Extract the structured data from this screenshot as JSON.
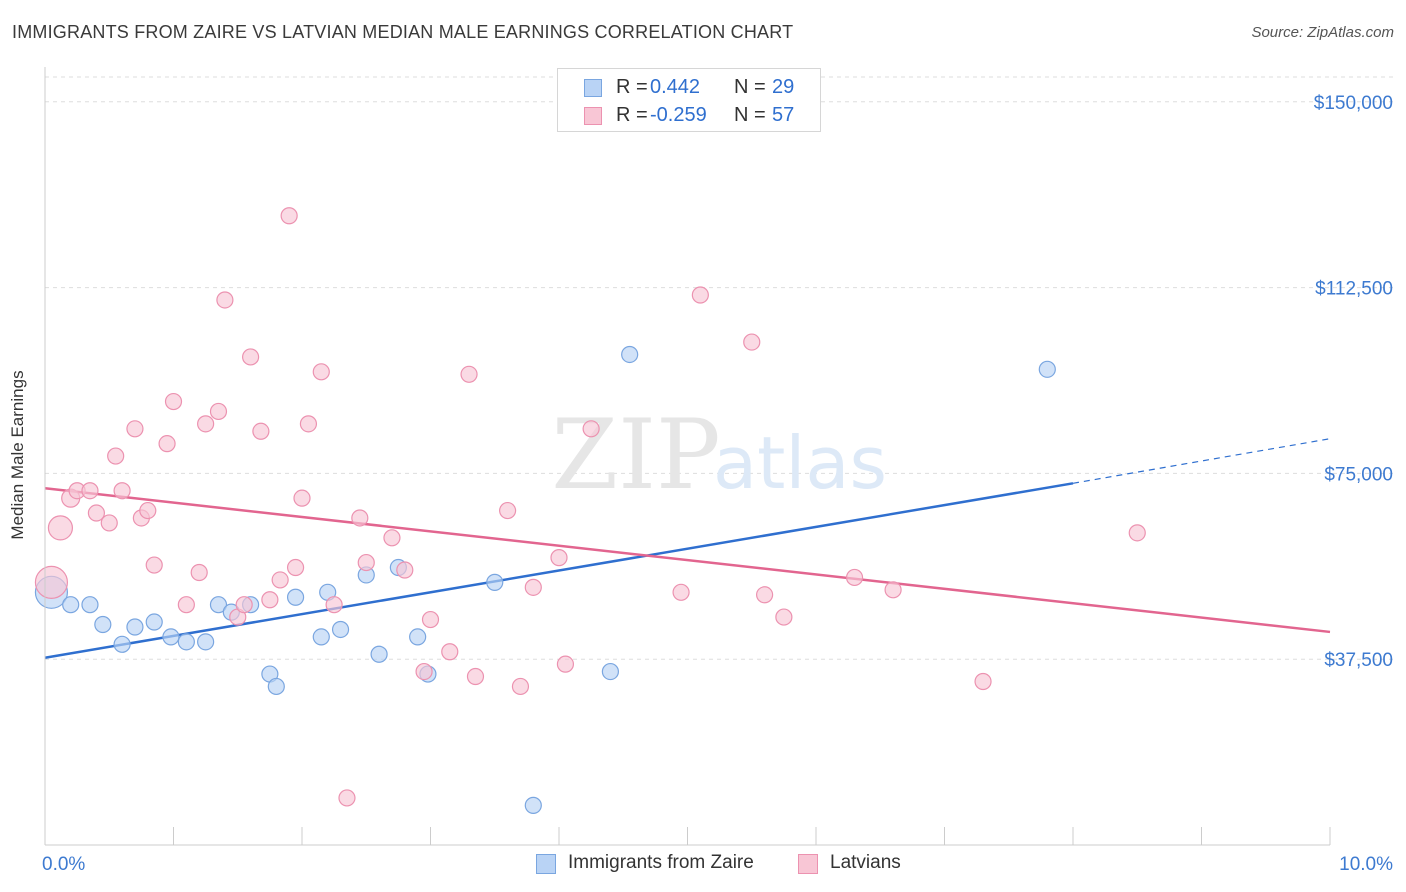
{
  "title": "IMMIGRANTS FROM ZAIRE VS LATVIAN MEDIAN MALE EARNINGS CORRELATION CHART",
  "source": "Source: ZipAtlas.com",
  "watermark": {
    "zip": "ZIP",
    "atlas": "atlas"
  },
  "colors": {
    "blue_fill": "#b9d3f5",
    "blue_stroke": "#7aa6e0",
    "blue_line": "#2f6fcf",
    "pink_fill": "#f8c6d5",
    "pink_stroke": "#ec92b0",
    "pink_line": "#e2658f",
    "axis_text": "#3d7ad0",
    "grid": "#dddddd"
  },
  "stats": [
    {
      "r_label": "R =",
      "r_value": "0.442",
      "n_label": "N =",
      "n_value": "29",
      "color": "blue"
    },
    {
      "r_label": "R =",
      "r_value": "-0.259",
      "n_label": "N =",
      "n_value": "57",
      "color": "pink"
    }
  ],
  "legend": [
    {
      "label": "Immigrants from Zaire",
      "color": "blue"
    },
    {
      "label": "Latvians",
      "color": "pink"
    }
  ],
  "chart_data": {
    "type": "scatter",
    "title": "IMMIGRANTS FROM ZAIRE VS LATVIAN MEDIAN MALE EARNINGS CORRELATION CHART",
    "xlabel": "",
    "ylabel": "Median Male Earnings",
    "xlim": [
      0,
      10
    ],
    "ylim": [
      0,
      155000
    ],
    "x_tick_labels": [
      "0.0%",
      "10.0%"
    ],
    "y_ticks": [
      37500,
      75000,
      112500,
      150000
    ],
    "y_tick_labels": [
      "$37,500",
      "$75,000",
      "$112,500",
      "$150,000"
    ],
    "grid": true,
    "legend_position": "bottom-center",
    "series": [
      {
        "name": "Immigrants from Zaire",
        "color": "blue",
        "points": [
          [
            0.05,
            51000
          ],
          [
            0.2,
            48500
          ],
          [
            0.35,
            48500
          ],
          [
            0.45,
            44500
          ],
          [
            0.6,
            40500
          ],
          [
            0.7,
            44000
          ],
          [
            0.85,
            45000
          ],
          [
            0.98,
            42000
          ],
          [
            1.1,
            41000
          ],
          [
            1.25,
            41000
          ],
          [
            1.35,
            48500
          ],
          [
            1.45,
            47000
          ],
          [
            1.6,
            48500
          ],
          [
            1.75,
            34500
          ],
          [
            1.8,
            32000
          ],
          [
            1.95,
            50000
          ],
          [
            2.15,
            42000
          ],
          [
            2.2,
            51000
          ],
          [
            2.3,
            43500
          ],
          [
            2.5,
            54500
          ],
          [
            2.6,
            38500
          ],
          [
            2.75,
            56000
          ],
          [
            2.9,
            42000
          ],
          [
            2.98,
            34500
          ],
          [
            3.5,
            53000
          ],
          [
            3.8,
            8000
          ],
          [
            4.4,
            35000
          ],
          [
            4.55,
            99000
          ],
          [
            7.8,
            96000
          ]
        ],
        "sizes": [
          30,
          14,
          14,
          14,
          14,
          14,
          14,
          14,
          14,
          14,
          14,
          14,
          14,
          14,
          14,
          14,
          14,
          14,
          14,
          14,
          14,
          14,
          14,
          14,
          14,
          14,
          14,
          14,
          14
        ],
        "trend": {
          "x": [
            0,
            8.0
          ],
          "y": [
            37800,
            73000
          ],
          "extended_x": [
            8.0,
            10.0
          ],
          "extended_y": [
            73000,
            82000
          ]
        }
      },
      {
        "name": "Latvians",
        "color": "pink",
        "points": [
          [
            0.05,
            53000
          ],
          [
            0.12,
            64000
          ],
          [
            0.2,
            70000
          ],
          [
            0.25,
            71500
          ],
          [
            0.35,
            71500
          ],
          [
            0.4,
            67000
          ],
          [
            0.5,
            65000
          ],
          [
            0.55,
            78500
          ],
          [
            0.6,
            71500
          ],
          [
            0.7,
            84000
          ],
          [
            0.75,
            66000
          ],
          [
            0.8,
            67500
          ],
          [
            0.85,
            56500
          ],
          [
            0.95,
            81000
          ],
          [
            1.0,
            89500
          ],
          [
            1.1,
            48500
          ],
          [
            1.2,
            55000
          ],
          [
            1.25,
            85000
          ],
          [
            1.35,
            87500
          ],
          [
            1.4,
            110000
          ],
          [
            1.5,
            46000
          ],
          [
            1.55,
            48500
          ],
          [
            1.6,
            98500
          ],
          [
            1.68,
            83500
          ],
          [
            1.75,
            49500
          ],
          [
            1.83,
            53500
          ],
          [
            1.9,
            127000
          ],
          [
            1.95,
            56000
          ],
          [
            2.0,
            70000
          ],
          [
            2.05,
            85000
          ],
          [
            2.15,
            95500
          ],
          [
            2.25,
            48500
          ],
          [
            2.35,
            9500
          ],
          [
            2.45,
            66000
          ],
          [
            2.5,
            57000
          ],
          [
            2.7,
            62000
          ],
          [
            2.8,
            55500
          ],
          [
            2.95,
            35000
          ],
          [
            3.0,
            45500
          ],
          [
            3.15,
            39000
          ],
          [
            3.35,
            34000
          ],
          [
            3.6,
            67500
          ],
          [
            3.7,
            32000
          ],
          [
            3.8,
            52000
          ],
          [
            4.0,
            58000
          ],
          [
            4.05,
            36500
          ],
          [
            4.25,
            84000
          ],
          [
            4.95,
            51000
          ],
          [
            5.1,
            111000
          ],
          [
            5.5,
            101500
          ],
          [
            5.6,
            50500
          ],
          [
            5.75,
            46000
          ],
          [
            6.3,
            54000
          ],
          [
            6.6,
            51500
          ],
          [
            7.3,
            33000
          ],
          [
            8.5,
            63000
          ],
          [
            3.3,
            95000
          ]
        ],
        "sizes": [
          30,
          22,
          16,
          14,
          14,
          14,
          14,
          14,
          14,
          14,
          14,
          14,
          14,
          14,
          14,
          14,
          14,
          14,
          14,
          14,
          14,
          14,
          14,
          14,
          14,
          14,
          14,
          14,
          14,
          14,
          14,
          14,
          14,
          14,
          14,
          14,
          14,
          14,
          14,
          14,
          14,
          14,
          14,
          14,
          14,
          14,
          14,
          14,
          14,
          14,
          14,
          14,
          14,
          14,
          14,
          14,
          14
        ],
        "trend": {
          "x": [
            0,
            10.0
          ],
          "y": [
            72000,
            43000
          ]
        }
      }
    ]
  }
}
